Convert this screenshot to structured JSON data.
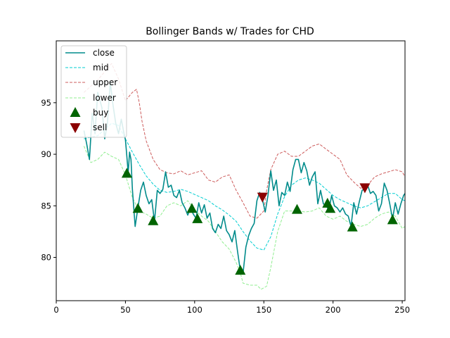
{
  "chart_data": {
    "type": "line",
    "title": "Bollinger Bands w/ Trades for CHD",
    "xlabel": "",
    "ylabel": "",
    "xlim": [
      0,
      252
    ],
    "ylim": [
      75.8,
      101.0
    ],
    "xticks": [
      0,
      50,
      100,
      150,
      200,
      250
    ],
    "yticks": [
      80,
      85,
      90,
      95
    ],
    "grid": false,
    "legend_position": "top-left",
    "series": [
      {
        "name": "close",
        "style": "solid",
        "color": "#008b8b",
        "x": [
          20,
          22,
          24,
          26,
          28,
          30,
          33,
          35,
          37,
          39,
          41,
          43,
          45,
          47,
          49,
          50,
          51,
          52,
          53,
          54,
          55,
          57,
          59,
          61,
          63,
          65,
          67,
          69,
          71,
          73,
          75,
          77,
          79,
          81,
          83,
          85,
          87,
          89,
          91,
          93,
          95,
          97,
          99,
          101,
          103,
          105,
          107,
          109,
          111,
          113,
          115,
          117,
          119,
          121,
          123,
          125,
          127,
          129,
          131,
          133,
          135,
          137,
          139,
          141,
          143,
          145,
          147,
          149,
          151,
          153,
          155,
          157,
          159,
          161,
          163,
          165,
          167,
          169,
          171,
          173,
          175,
          177,
          179,
          181,
          183,
          185,
          187,
          189,
          191,
          193,
          195,
          197,
          199,
          201,
          203,
          205,
          207,
          209,
          211,
          213,
          215,
          217,
          219,
          221,
          223,
          225,
          227,
          229,
          231,
          233,
          235,
          237,
          239,
          241,
          243,
          245,
          247,
          249,
          251,
          252
        ],
        "y": [
          92.3,
          91.0,
          89.5,
          94.0,
          92.0,
          96.0,
          94.5,
          91.5,
          93.0,
          97.0,
          94.8,
          93.0,
          92.0,
          93.4,
          92.0,
          91.4,
          89.8,
          88.2,
          90.2,
          89.5,
          86.6,
          83.0,
          84.8,
          86.5,
          87.3,
          86.0,
          85.2,
          85.6,
          83.5,
          86.5,
          86.2,
          86.6,
          88.3,
          86.8,
          87.0,
          86.0,
          85.8,
          86.5,
          85.3,
          84.8,
          84.1,
          84.8,
          84.2,
          83.8,
          85.3,
          84.3,
          85.1,
          83.8,
          84.3,
          82.8,
          82.4,
          83.2,
          82.8,
          84.0,
          82.6,
          82.2,
          81.5,
          82.6,
          80.6,
          78.7,
          78.5,
          81.0,
          82.1,
          82.8,
          83.3,
          85.5,
          86.3,
          85.6,
          84.4,
          86.0,
          88.4,
          86.5,
          87.5,
          85.0,
          86.3,
          86.0,
          87.3,
          86.4,
          88.5,
          89.5,
          89.5,
          88.2,
          89.2,
          88.4,
          87.0,
          87.8,
          88.3,
          85.2,
          86.5,
          85.2,
          85.0,
          84.6,
          86.0,
          85.0,
          84.8,
          84.4,
          84.8,
          84.2,
          84.0,
          83.0,
          85.3,
          84.2,
          85.4,
          86.5,
          86.6,
          87.0,
          86.2,
          86.4,
          86.0,
          84.5,
          85.2,
          87.2,
          86.5,
          85.2,
          83.7,
          85.3,
          84.2,
          85.2,
          86.0,
          86.2
        ]
      },
      {
        "name": "mid",
        "style": "dashed",
        "color": "#00ced1",
        "x": [
          20,
          30,
          40,
          45,
          50,
          55,
          60,
          65,
          70,
          75,
          80,
          85,
          90,
          95,
          100,
          105,
          110,
          115,
          120,
          125,
          130,
          135,
          140,
          145,
          150,
          155,
          160,
          165,
          170,
          175,
          180,
          185,
          190,
          195,
          200,
          205,
          210,
          215,
          220,
          225,
          230,
          235,
          240,
          245,
          250,
          252
        ],
        "y": [
          91.5,
          91.8,
          93.0,
          92.8,
          91.5,
          90.2,
          89.0,
          87.9,
          87.1,
          86.5,
          86.3,
          86.4,
          86.6,
          86.4,
          86.1,
          85.8,
          85.5,
          85.0,
          84.6,
          84.1,
          83.5,
          82.5,
          81.6,
          80.9,
          80.7,
          82.0,
          84.2,
          85.9,
          87.0,
          87.5,
          87.7,
          87.5,
          87.2,
          86.6,
          86.0,
          85.6,
          85.3,
          85.0,
          84.8,
          85.0,
          85.4,
          85.8,
          86.2,
          86.2,
          85.6,
          85.5
        ]
      },
      {
        "name": "upper",
        "style": "dashed",
        "color": "#cd5c5c",
        "x": [
          20,
          30,
          40,
          45,
          50,
          55,
          58,
          60,
          62,
          65,
          70,
          75,
          80,
          85,
          90,
          95,
          100,
          105,
          110,
          115,
          120,
          125,
          130,
          135,
          140,
          145,
          150,
          152,
          155,
          160,
          165,
          170,
          175,
          180,
          185,
          190,
          195,
          200,
          205,
          210,
          215,
          220,
          225,
          230,
          235,
          240,
          245,
          250,
          252
        ],
        "y": [
          96.0,
          97.2,
          98.8,
          97.3,
          95.2,
          96.0,
          96.3,
          95.0,
          93.2,
          91.3,
          89.5,
          88.5,
          88.2,
          88.1,
          88.4,
          88.0,
          88.2,
          88.4,
          87.5,
          87.3,
          87.8,
          88.0,
          86.5,
          85.3,
          84.0,
          83.8,
          84.5,
          86.5,
          88.5,
          90.0,
          90.3,
          89.8,
          89.8,
          90.3,
          90.8,
          91.0,
          90.5,
          90.0,
          89.5,
          88.0,
          87.3,
          86.7,
          87.0,
          87.8,
          88.1,
          88.3,
          88.5,
          88.3,
          87.8
        ]
      },
      {
        "name": "lower",
        "style": "dashed",
        "color": "#90ee90",
        "x": [
          20,
          25,
          30,
          35,
          40,
          45,
          50,
          55,
          60,
          65,
          70,
          75,
          80,
          85,
          90,
          95,
          100,
          105,
          110,
          115,
          120,
          125,
          130,
          133,
          135,
          140,
          145,
          148,
          152,
          155,
          160,
          165,
          170,
          175,
          180,
          185,
          190,
          195,
          200,
          205,
          210,
          215,
          220,
          225,
          230,
          235,
          240,
          245,
          250,
          252
        ],
        "y": [
          90.8,
          89.2,
          89.5,
          90.2,
          89.8,
          89.5,
          88.0,
          85.8,
          84.5,
          84.2,
          83.8,
          84.0,
          85.0,
          85.3,
          85.0,
          85.5,
          84.6,
          84.0,
          83.5,
          82.5,
          81.5,
          80.8,
          79.5,
          78.5,
          77.5,
          77.3,
          77.3,
          76.9,
          77.2,
          79.0,
          82.5,
          84.5,
          84.5,
          84.5,
          84.4,
          84.5,
          84.8,
          84.0,
          83.7,
          84.0,
          83.5,
          83.2,
          83.0,
          83.2,
          83.8,
          84.2,
          84.4,
          84.0,
          82.8,
          83.0
        ]
      }
    ],
    "buy_signals": {
      "name": "buy",
      "color": "#006400",
      "points": [
        [
          51,
          88.2
        ],
        [
          59,
          84.8
        ],
        [
          70,
          83.6
        ],
        [
          98,
          84.8
        ],
        [
          102,
          83.8
        ],
        [
          133,
          78.8
        ],
        [
          174,
          84.7
        ],
        [
          196,
          85.3
        ],
        [
          198,
          84.8
        ],
        [
          214,
          83.0
        ],
        [
          243,
          83.7
        ]
      ]
    },
    "sell_signals": {
      "name": "sell",
      "color": "#8b0000",
      "points": [
        [
          149,
          85.8
        ],
        [
          223,
          86.7
        ]
      ]
    }
  },
  "legend_labels": {
    "close": "close",
    "mid": "mid",
    "upper": "upper",
    "lower": "lower",
    "buy": "buy",
    "sell": "sell"
  }
}
